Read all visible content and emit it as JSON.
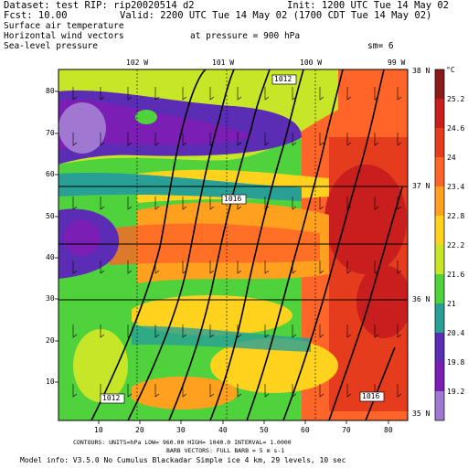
{
  "header": {
    "dataset_line": "Dataset: test  RIP: rip20020514  d2",
    "init_line": "Init: 1200 UTC Tue 14 May 02",
    "fcst_line": "Fcst:    10.00",
    "valid_line": "Valid: 2200 UTC Tue 14 May 02 (1700 CDT Tue 14 May 02)",
    "field1": "Surface air temperature",
    "field2": "Horizontal wind vectors",
    "field3": "Sea-level pressure",
    "pressure_label": "at pressure =   900 hPa",
    "smoothing": "sm= 6"
  },
  "map": {
    "lon_labels": [
      "102 W",
      "101 W",
      "100 W",
      "99 W"
    ],
    "lat_labels": [
      "38 N",
      "37 N",
      "36 N",
      "35 N"
    ],
    "x_ticks": [
      "10",
      "20",
      "30",
      "40",
      "50",
      "60",
      "70",
      "80"
    ],
    "y_ticks": [
      "10",
      "20",
      "30",
      "40",
      "50",
      "60",
      "70",
      "80"
    ],
    "isobar_labels": [
      "1012",
      "1016",
      "1012",
      "1016"
    ]
  },
  "colorbar": {
    "unit": "°C",
    "values": [
      "25.2",
      "24.6",
      "24",
      "23.4",
      "22.8",
      "22.2",
      "21.6",
      "21",
      "20.4",
      "19.8",
      "19.2"
    ],
    "colors": [
      "#8b1a1a",
      "#c81e1e",
      "#e63c1e",
      "#ff6428",
      "#ffa01e",
      "#ffd21e",
      "#c8e628",
      "#50d23c",
      "#28a096",
      "#5a2db4",
      "#7a1eb4",
      "#a078d2"
    ]
  },
  "footer": {
    "line1": "CONTOURS: UNITS=hPa  LOW=  960.00     HIGH=  1040.0     INTERVAL=   1.0000",
    "line2": "BARB VECTORS: FULL BARB = 5 m s-1",
    "line3": "Model info: V3.5.0 No Cumulus Blackadar  Simple ice    4 km,  29 levels,   10 sec"
  }
}
